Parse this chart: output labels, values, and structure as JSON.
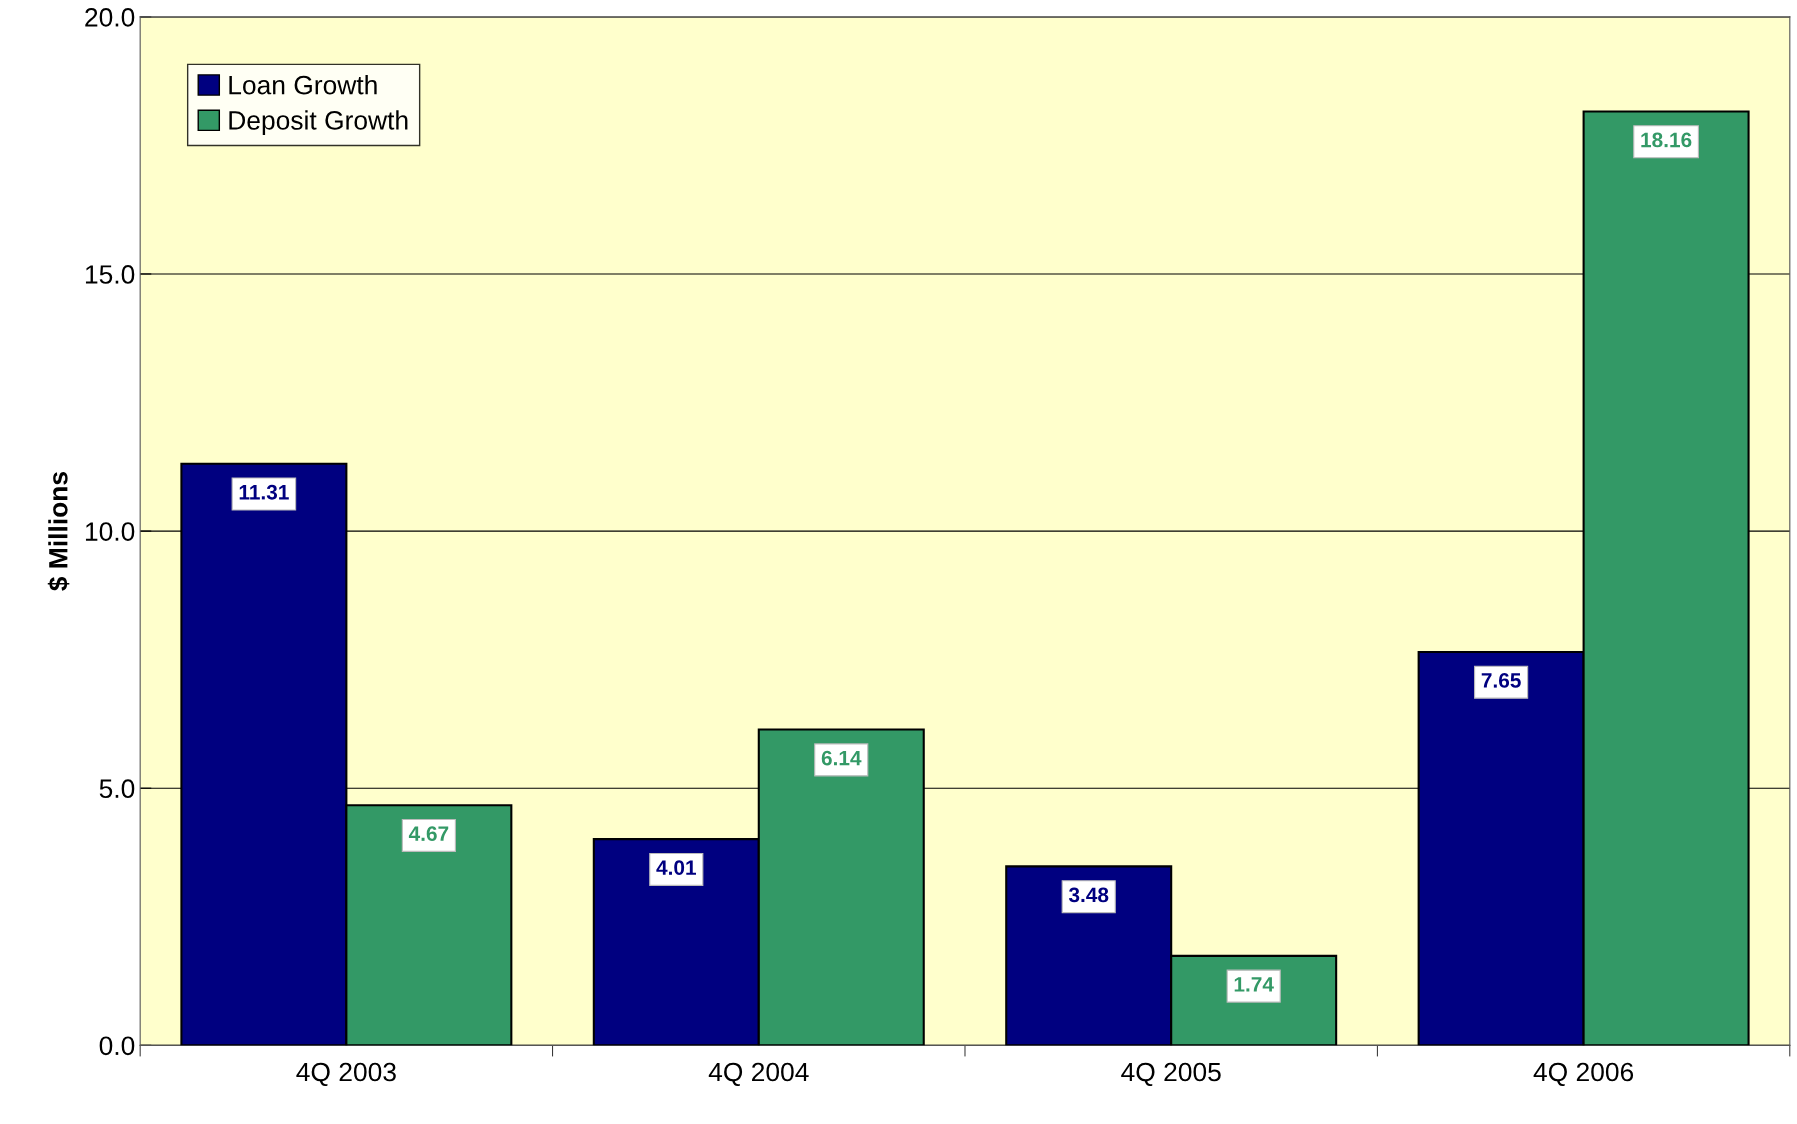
{
  "chart_data": {
    "type": "bar",
    "ylabel": "$ Millions",
    "categories": [
      "4Q 2003",
      "4Q 2004",
      "4Q 2005",
      "4Q 2006"
    ],
    "series": [
      {
        "name": "Loan Growth",
        "color": "#000080",
        "values": [
          11.31,
          4.01,
          3.48,
          7.65
        ]
      },
      {
        "name": "Deposit Growth",
        "color": "#339966",
        "values": [
          4.67,
          6.14,
          1.74,
          18.16
        ]
      }
    ],
    "ylim": [
      0,
      20
    ],
    "yticks": [
      {
        "value": 0,
        "label": "0.0"
      },
      {
        "value": 5,
        "label": "5.0"
      },
      {
        "value": 10,
        "label": "10.0"
      },
      {
        "value": 15,
        "label": "15.0"
      },
      {
        "value": 20,
        "label": "20.0"
      }
    ],
    "grid": "y",
    "legend": "top left",
    "data_labels": true
  }
}
